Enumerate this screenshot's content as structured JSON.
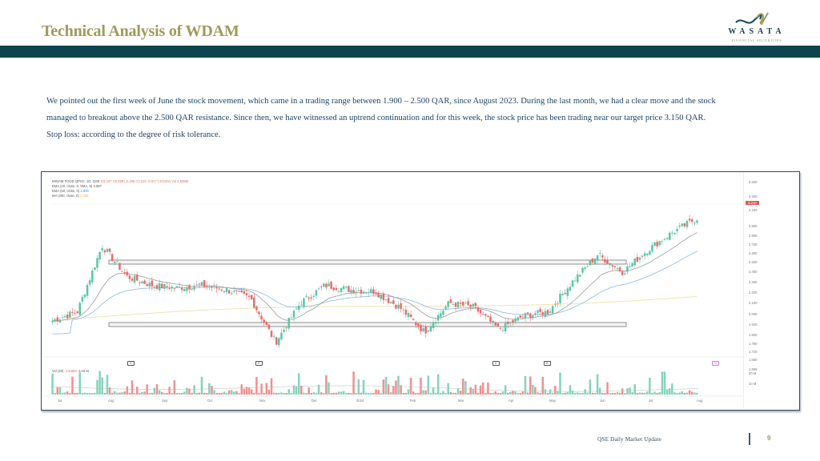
{
  "header": {
    "title": "Technical Analysis of WDAM",
    "logo": {
      "name": "WASATA",
      "subtitle": "FINANCIAL SECURITIES",
      "icon": "wave-logo-icon"
    }
  },
  "description": {
    "lines": [
      "We pointed out the first week of June the stock movement, which came in a trading range between 1.900 – 2.500 QAR, since August 2023. During the last month, we had a clear move and the stock",
      "managed to breakout above the 2.500 QAR resistance. Since then, we have witnessed an uptrend continuation and for this week, the stock price has been trading near our target price 3.150 QAR.",
      "Stop loss: according to the degree of risk tolerance."
    ]
  },
  "chart": {
    "legend": {
      "symbol": "WIDAM FOOD QPSC, 1D, QSE",
      "ohlc": "O3.247 H3.288 L3.195 C3.210 -0.017 (-0.54%) Vol 2.548M",
      "ema20": "EMA (20, close, 0, SMA, 5)",
      "ema20_value": "2.997",
      "ema50": "EMA (50, close, 0)",
      "ema50_value": "2.800",
      "ma200": "MA (200, close, 0)",
      "ma200_value": "2.336"
    },
    "volume_label": "Vol (20)",
    "volume_values": [
      "2.548M",
      "2.18 M"
    ],
    "current_price_tag": "3.210",
    "colors": {
      "up": "#5cc4a5",
      "down": "#ec6a6a",
      "ema20": "#9a9a9a",
      "ema50": "#8ab8e6",
      "ma200": "#f1dca0",
      "zone": "#777777"
    }
  },
  "chart_data": {
    "type": "candlestick",
    "title": "WIDAM FOOD QPSC, 1D, QSE",
    "xlabel": "",
    "ylabel": "Price (QAR)",
    "y_ticks": [
      "3.500",
      "3.300",
      "3.100",
      "2.900",
      "2.800",
      "2.700",
      "2.600",
      "2.500",
      "2.400",
      "2.300",
      "2.200",
      "2.100",
      "2.000",
      "1.920",
      "1.840",
      "1.780",
      "1.720",
      "1.660",
      "1.606"
    ],
    "volume_ticks": [
      "20 M",
      "10 M"
    ],
    "x_ticks": [
      "Jul",
      "Aug",
      "Sep",
      "Oct",
      "Nov",
      "Dec",
      "2024",
      "Feb",
      "Mar",
      "Apr",
      "May",
      "Jun",
      "Jul",
      "Aug"
    ],
    "ylim": [
      1.6,
      3.5
    ],
    "zones": [
      {
        "name": "resistance",
        "level": 2.5
      },
      {
        "name": "support",
        "level": 1.9
      }
    ],
    "target_price": 3.15,
    "last_close": 3.21,
    "series_close_approx": {
      "x": [
        "Jul",
        "Jul-mid",
        "Aug",
        "Aug-mid",
        "Sep",
        "Sep-mid",
        "Oct",
        "Oct-mid",
        "Nov",
        "Nov-mid",
        "Dec",
        "Dec-mid",
        "2024",
        "Jan-mid",
        "Feb",
        "Feb-mid",
        "Mar",
        "Mar-mid",
        "Apr",
        "Apr-mid",
        "May",
        "May-mid",
        "Jun",
        "Jun-mid",
        "Jul",
        "Jul-mid",
        "Aug"
      ],
      "values": [
        2.05,
        2.15,
        2.9,
        2.55,
        2.45,
        2.42,
        2.45,
        2.4,
        2.3,
        1.8,
        2.25,
        2.45,
        2.4,
        2.38,
        2.2,
        1.92,
        2.25,
        2.2,
        1.95,
        2.1,
        2.15,
        2.5,
        2.8,
        2.6,
        2.85,
        3.05,
        3.21
      ]
    },
    "legend": [
      "EMA (20)",
      "EMA (50)",
      "MA (200)",
      "Vol (20)"
    ]
  },
  "footer": {
    "text": "QSE Daily Market Update",
    "page": "9"
  }
}
